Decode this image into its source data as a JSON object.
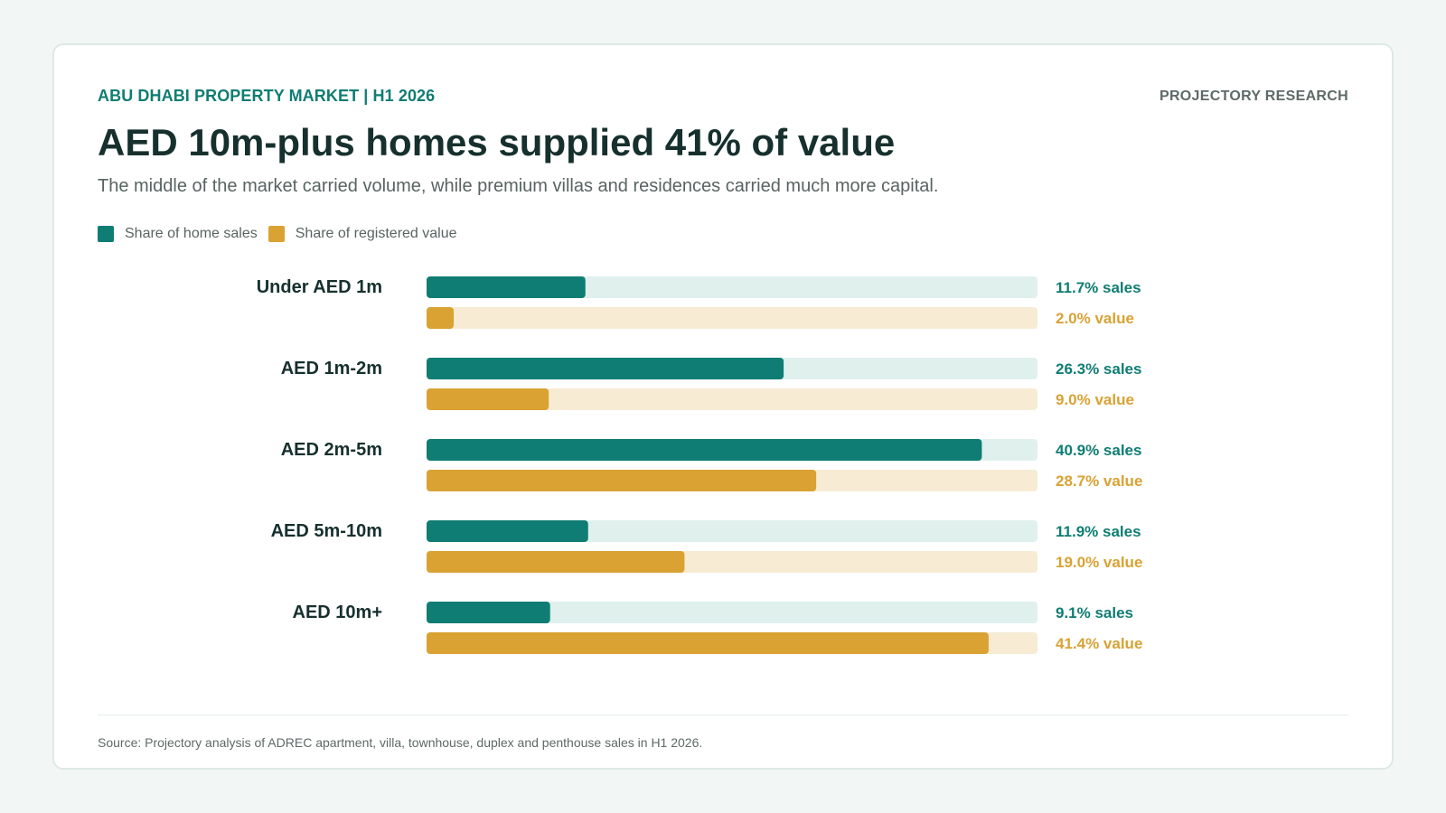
{
  "header": {
    "kicker": "ABU DHABI PROPERTY MARKET | H1 2026",
    "brand": "PROJECTORY RESEARCH",
    "title": "AED 10m-plus homes supplied 41% of value",
    "subtitle": "The middle of the market carried volume, while premium villas and residences carried much more capital."
  },
  "legend": {
    "sales_label": "Share of home sales",
    "value_label": "Share of registered value"
  },
  "colors": {
    "sales": "#0f7d73",
    "sales_track": "#dff0ed",
    "value": "#d9a233",
    "value_track": "#f7ebd4",
    "category_text": "#16302d"
  },
  "chart_data": {
    "type": "bar",
    "orientation": "horizontal",
    "categories": [
      "Under AED 1m",
      "AED 1m-2m",
      "AED 2m-5m",
      "AED 5m-10m",
      "AED 10m+"
    ],
    "series": [
      {
        "name": "Share of home sales",
        "values": [
          11.7,
          26.3,
          40.9,
          11.9,
          9.1
        ],
        "suffix": "% sales"
      },
      {
        "name": "Share of registered value",
        "values": [
          2.0,
          9.0,
          28.7,
          19.0,
          41.4
        ],
        "suffix": "% value"
      }
    ],
    "xlim": [
      0,
      45
    ],
    "legend_position": "top-left",
    "grid": false
  },
  "footer": {
    "source": "Source: Projectory analysis of ADREC apartment, villa, townhouse, duplex and penthouse sales in H1 2026."
  }
}
